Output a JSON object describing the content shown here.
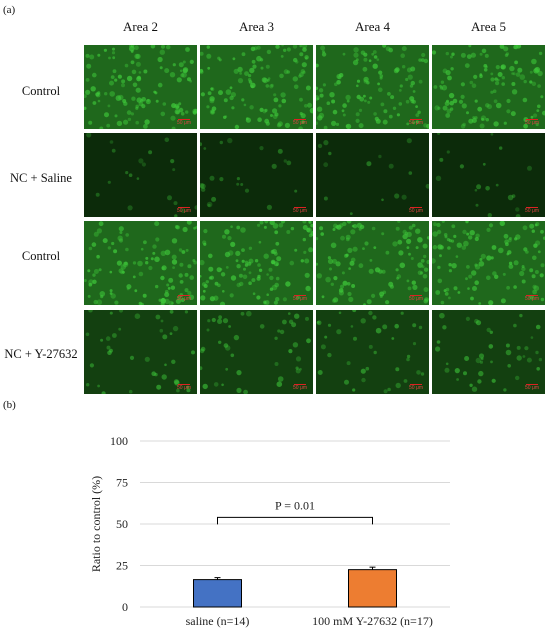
{
  "figure": {
    "panel_a_label": "(a)",
    "panel_b_label": "(b)",
    "columns": [
      "Area 2",
      "Area 3",
      "Area 4",
      "Area 5"
    ],
    "rows": [
      {
        "label": "Control",
        "fluorescence": "bright"
      },
      {
        "label": "NC + Saline",
        "fluorescence": "dim"
      },
      {
        "label": "Control",
        "fluorescence": "bright"
      },
      {
        "label": "NC + Y-27632",
        "fluorescence": "medium"
      }
    ],
    "scale_bar_label": "50 μm",
    "colors": {
      "cells": "#3ec83a",
      "background": "#071a05",
      "scale_bar": "#dd2222"
    }
  },
  "chart_data": {
    "type": "bar",
    "categories": [
      "saline (n=14)",
      "100 mM Y-27632 (n=17)"
    ],
    "values": [
      16.5,
      22.5
    ],
    "errors": [
      1.2,
      1.5
    ],
    "ylabel": "Ratio to control (%)",
    "xlabel": "",
    "ylim": [
      0,
      100
    ],
    "yticks": [
      0,
      25,
      50,
      75,
      100
    ],
    "grid": true,
    "colors": [
      "#4472c4",
      "#ed7d31"
    ],
    "annotation": {
      "text": "P = 0.01",
      "value": 54
    }
  }
}
